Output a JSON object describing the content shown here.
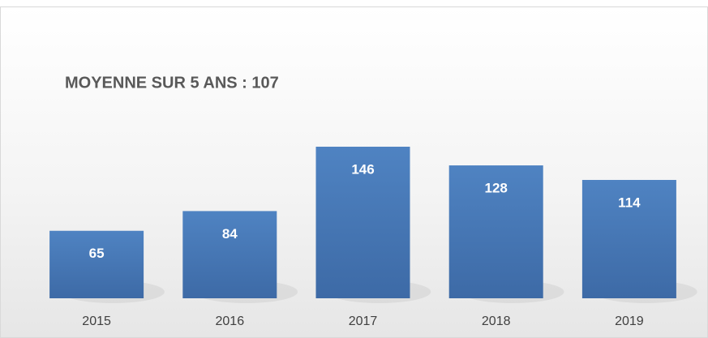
{
  "chart_data": {
    "type": "bar",
    "title": "MOYENNE SUR 5 ANS : 107",
    "categories": [
      "2015",
      "2016",
      "2017",
      "2018",
      "2019"
    ],
    "values": [
      65,
      84,
      146,
      128,
      114
    ],
    "color": "#4a7ebb"
  }
}
